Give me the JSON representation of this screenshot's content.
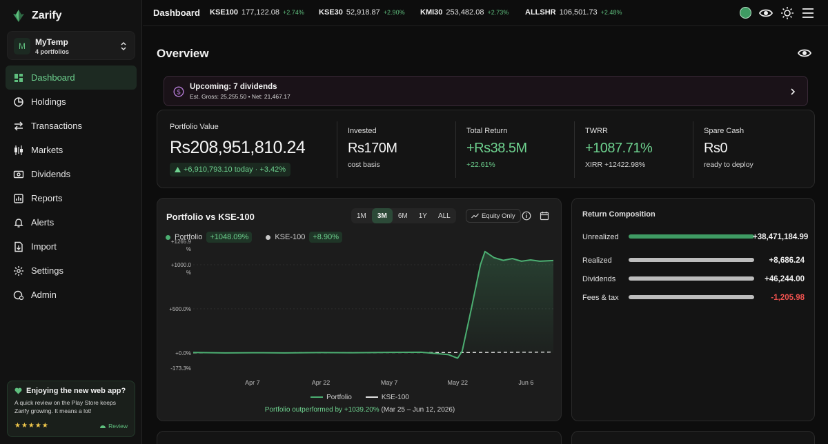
{
  "app": {
    "name": "Zarify"
  },
  "account": {
    "avatar_letter": "M",
    "name": "MyTemp",
    "subtitle": "4 portfolios"
  },
  "nav": [
    {
      "label": "Dashboard",
      "icon": "dashboard-icon",
      "active": true
    },
    {
      "label": "Holdings",
      "icon": "pie-chart-icon"
    },
    {
      "label": "Transactions",
      "icon": "arrows-swap-icon"
    },
    {
      "label": "Markets",
      "icon": "candlestick-icon"
    },
    {
      "label": "Dividends",
      "icon": "cash-icon"
    },
    {
      "label": "Reports",
      "icon": "bar-report-icon"
    },
    {
      "label": "Alerts",
      "icon": "bell-icon"
    },
    {
      "label": "Import",
      "icon": "file-import-icon"
    },
    {
      "label": "Settings",
      "icon": "gear-icon"
    },
    {
      "label": "Admin",
      "icon": "admin-shield-icon"
    }
  ],
  "promo": {
    "title": "Enjoying the new web app?",
    "text": "A quick review on the Play Store keeps Zarify growing. It means a lot!",
    "stars": "★★★★★",
    "review_label": "Review"
  },
  "topbar": {
    "title": "Dashboard",
    "tickers": [
      {
        "symbol": "KSE100",
        "value": "177,122.08",
        "change": "+2.74%"
      },
      {
        "symbol": "KSE30",
        "value": "52,918.87",
        "change": "+2.90%"
      },
      {
        "symbol": "KMI30",
        "value": "253,482.08",
        "change": "+2.73%"
      },
      {
        "symbol": "ALLSHR",
        "value": "106,501.73",
        "change": "+2.48%"
      }
    ]
  },
  "overview": {
    "title": "Overview"
  },
  "dividend_banner": {
    "title": "Upcoming: 7 dividends",
    "subtitle": "Est. Gross: 25,255.50 • Net: 21,467.17"
  },
  "stats": {
    "portfolio_value": {
      "label": "Portfolio Value",
      "value": "Rs208,951,810.24",
      "change": "+6,910,793.10 today · +3.42%"
    },
    "invested": {
      "label": "Invested",
      "value": "Rs170M",
      "sub": "cost basis"
    },
    "total_return": {
      "label": "Total Return",
      "value": "+Rs38.5M",
      "sub": "+22.61%"
    },
    "twrr": {
      "label": "TWRR",
      "value": "+1087.71%",
      "sub": "XIRR +12422.98%"
    },
    "spare_cash": {
      "label": "Spare Cash",
      "value": "Rs0",
      "sub": "ready to deploy"
    }
  },
  "chart_card": {
    "title": "Portfolio vs KSE-100",
    "ranges": [
      "1M",
      "3M",
      "6M",
      "1Y",
      "ALL"
    ],
    "active_range": "3M",
    "equity_toggle": "Equity Only",
    "legend": [
      {
        "name": "Portfolio",
        "value": "+1048.09%",
        "color": "#4caf72"
      },
      {
        "name": "KSE-100",
        "value": "+8.90%",
        "color": "#c8c8c8"
      }
    ],
    "outperf_prefix": "Portfolio outperformed by +1039.20%",
    "outperf_suffix": "(Mar 25 – Jun 12, 2026)"
  },
  "chart_data": {
    "type": "area",
    "xlabel": "",
    "ylabel": "",
    "x_ticks": [
      "Apr 7",
      "Apr 22",
      "May 7",
      "May 22",
      "Jun 6"
    ],
    "y_ticks": [
      "+1265.9\n%",
      "+1000.0\n%",
      "+500.0%",
      "+0.0%",
      "-173.3%"
    ],
    "ylim": [
      -173.3,
      1265.9
    ],
    "y_tick_values": [
      1265.9,
      1000.0,
      500.0,
      0.0,
      -173.3
    ],
    "x_domain": [
      "Mar 25",
      "Jun 12"
    ],
    "series": [
      {
        "name": "Portfolio",
        "color": "#4caf72",
        "points": [
          [
            "Mar 25",
            5
          ],
          [
            "Apr 1",
            0
          ],
          [
            "Apr 7",
            2
          ],
          [
            "Apr 14",
            0
          ],
          [
            "Apr 22",
            4
          ],
          [
            "Apr 29",
            2
          ],
          [
            "May 7",
            6
          ],
          [
            "May 14",
            8
          ],
          [
            "May 20",
            -20
          ],
          [
            "May 22",
            -60
          ],
          [
            "May 23",
            20
          ],
          [
            "May 25",
            500
          ],
          [
            "May 27",
            1000
          ],
          [
            "May 28",
            1150
          ],
          [
            "May 30",
            1080
          ],
          [
            "Jun 1",
            1050
          ],
          [
            "Jun 3",
            1070
          ],
          [
            "Jun 5",
            1040
          ],
          [
            "Jun 7",
            1055
          ],
          [
            "Jun 9",
            1040
          ],
          [
            "Jun 12",
            1048.09
          ]
        ]
      },
      {
        "name": "KSE-100",
        "color": "#c8c8c8",
        "points": [
          [
            "Mar 25",
            0
          ],
          [
            "Apr 7",
            1
          ],
          [
            "Apr 22",
            2
          ],
          [
            "May 7",
            3
          ],
          [
            "May 22",
            4
          ],
          [
            "Jun 6",
            7
          ],
          [
            "Jun 12",
            8.9
          ]
        ]
      }
    ],
    "grid": true,
    "legend": "bottom-center"
  },
  "composition": {
    "title": "Return Composition",
    "rows": [
      {
        "label": "Unrealized",
        "value": "+38,471,184.99",
        "fraction": 1.0,
        "color": "#3f9b63"
      },
      {
        "label": "Realized",
        "value": "+8,686.24",
        "fraction": 1.0,
        "color": "#bdbdbd"
      },
      {
        "label": "Dividends",
        "value": "+46,244.00",
        "fraction": 1.0,
        "color": "#bdbdbd"
      },
      {
        "label": "Fees & tax",
        "value": "-1,205.98",
        "fraction": 1.0,
        "color": "#bdbdbd",
        "negative": true
      }
    ]
  }
}
